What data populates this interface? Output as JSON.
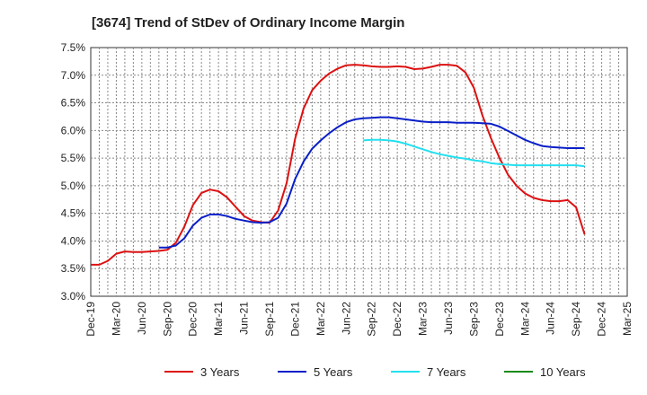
{
  "chart_data": {
    "type": "line",
    "title": "[3674]  Trend of StDev of Ordinary Income Margin",
    "xlabel": "",
    "ylabel": "",
    "ylim": [
      3.0,
      7.5
    ],
    "yticks": [
      "3.0%",
      "3.5%",
      "4.0%",
      "4.5%",
      "5.0%",
      "5.5%",
      "6.0%",
      "6.5%",
      "7.0%",
      "7.5%"
    ],
    "ytick_values": [
      3.0,
      3.5,
      4.0,
      4.5,
      5.0,
      5.5,
      6.0,
      6.5,
      7.0,
      7.5
    ],
    "x_labels": [
      "Dec-19",
      "Mar-20",
      "Jun-20",
      "Sep-20",
      "Dec-20",
      "Mar-21",
      "Jun-21",
      "Sep-21",
      "Dec-21",
      "Mar-22",
      "Jun-22",
      "Sep-22",
      "Dec-22",
      "Mar-23",
      "Jun-23",
      "Sep-23",
      "Dec-23",
      "Mar-24",
      "Jun-24",
      "Sep-24",
      "Dec-24",
      "Mar-25"
    ],
    "grid": true,
    "legend_position": "bottom",
    "series": [
      {
        "name": "3 Years",
        "color": "#dd1111",
        "values": [
          3.57,
          3.57,
          3.64,
          3.77,
          3.81,
          3.8,
          3.8,
          3.81,
          3.82,
          3.84,
          3.97,
          4.26,
          4.65,
          4.87,
          4.93,
          4.9,
          4.79,
          4.62,
          4.45,
          4.37,
          4.34,
          4.33,
          4.55,
          5.05,
          5.85,
          6.4,
          6.73,
          6.9,
          7.03,
          7.12,
          7.18,
          7.19,
          7.18,
          7.16,
          7.15,
          7.15,
          7.16,
          7.15,
          7.11,
          7.12,
          7.15,
          7.19,
          7.19,
          7.17,
          7.05,
          6.77,
          6.27,
          5.86,
          5.5,
          5.2,
          5.0,
          4.86,
          4.78,
          4.74,
          4.72,
          4.72,
          4.74,
          4.61,
          4.12
        ]
      },
      {
        "name": "5 Years",
        "color": "#0a1fc8",
        "values": [
          null,
          null,
          null,
          null,
          null,
          null,
          null,
          null,
          3.88,
          3.88,
          3.92,
          4.05,
          4.28,
          4.42,
          4.48,
          4.48,
          4.45,
          4.4,
          4.37,
          4.34,
          4.33,
          4.34,
          4.42,
          4.68,
          5.12,
          5.44,
          5.67,
          5.82,
          5.95,
          6.06,
          6.15,
          6.2,
          6.22,
          6.23,
          6.24,
          6.24,
          6.22,
          6.2,
          6.18,
          6.16,
          6.15,
          6.15,
          6.15,
          6.14,
          6.14,
          6.14,
          6.13,
          6.12,
          6.07,
          5.99,
          5.91,
          5.83,
          5.77,
          5.72,
          5.7,
          5.69,
          5.68,
          5.68,
          5.68
        ]
      },
      {
        "name": "7 Years",
        "color": "#22e0f0",
        "values": [
          null,
          null,
          null,
          null,
          null,
          null,
          null,
          null,
          null,
          null,
          null,
          null,
          null,
          null,
          null,
          null,
          null,
          null,
          null,
          null,
          null,
          null,
          null,
          null,
          null,
          null,
          null,
          null,
          null,
          null,
          null,
          null,
          5.82,
          5.83,
          5.83,
          5.82,
          5.8,
          5.76,
          5.71,
          5.66,
          5.61,
          5.57,
          5.54,
          5.51,
          5.49,
          5.46,
          5.44,
          5.41,
          5.39,
          5.38,
          5.37,
          5.37,
          5.37,
          5.37,
          5.37,
          5.37,
          5.37,
          5.37,
          5.35
        ]
      },
      {
        "name": "10 Years",
        "color": "#1a8a1a",
        "values": []
      }
    ]
  }
}
